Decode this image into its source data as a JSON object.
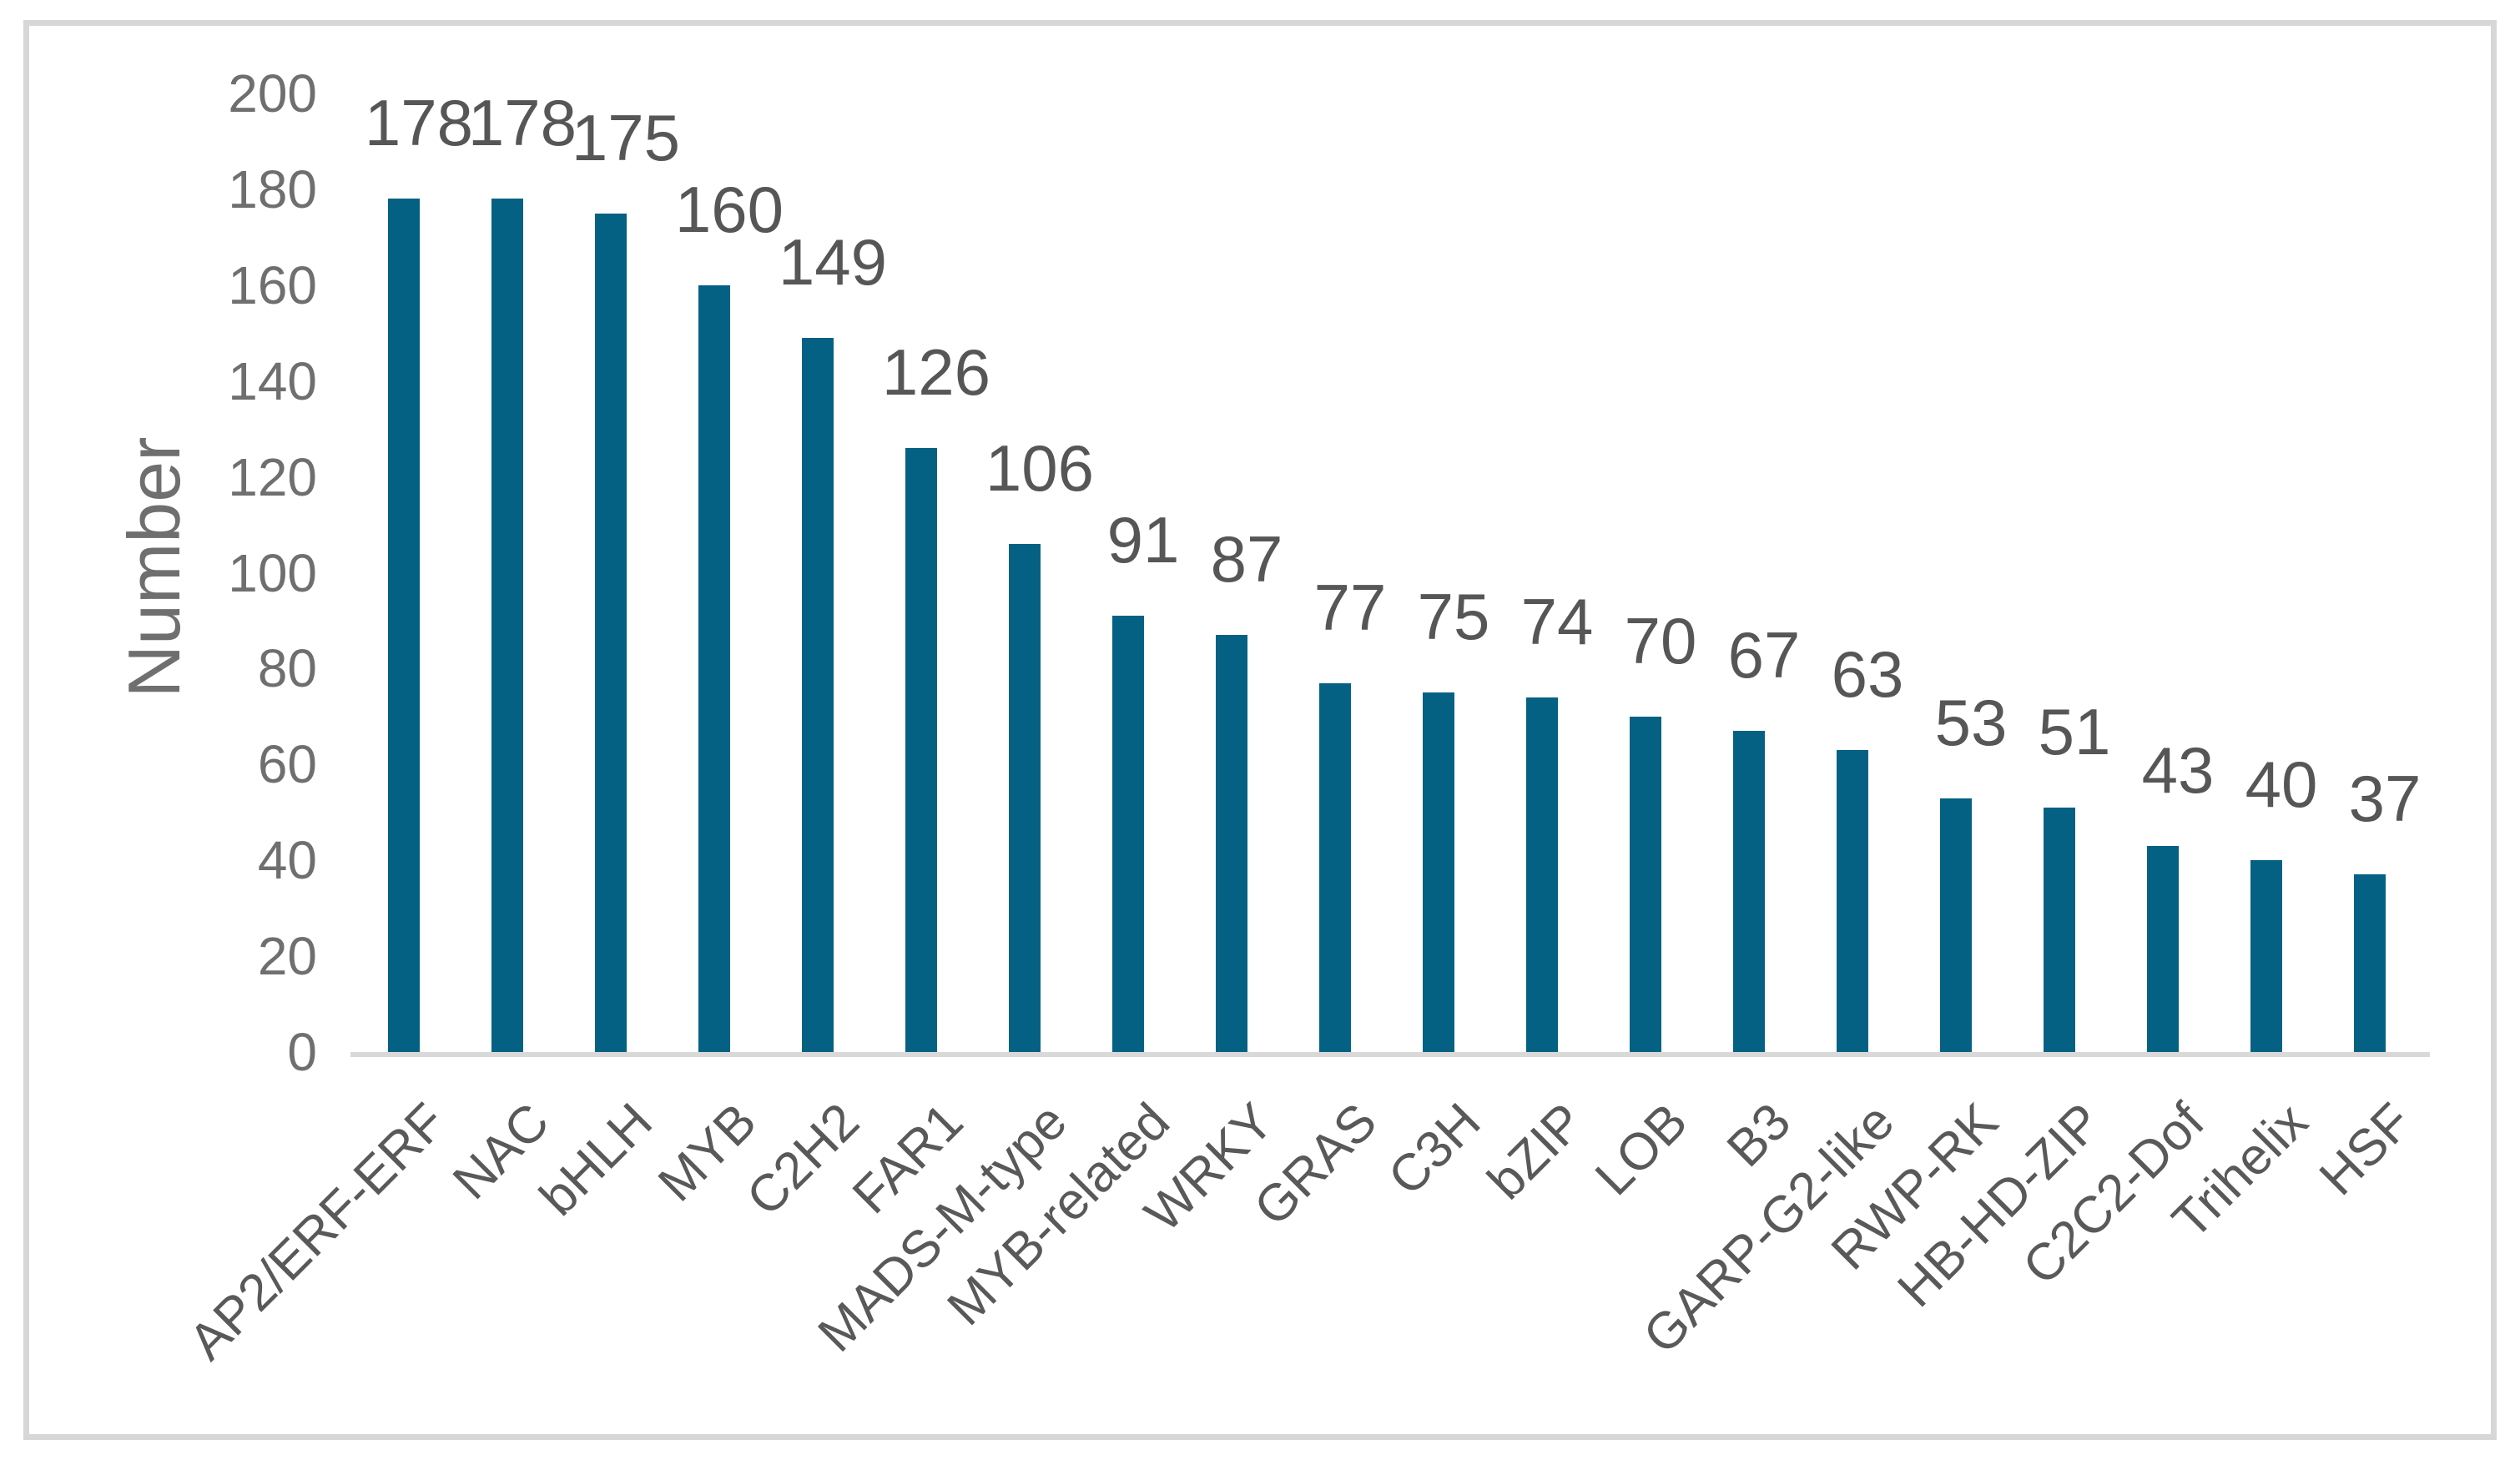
{
  "chart_data": {
    "type": "bar",
    "title": "",
    "xlabel": "",
    "ylabel": "Number",
    "categories": [
      "AP2/ERF-ERF",
      "NAC",
      "bHLH",
      "MYB",
      "C2H2",
      "FAR1",
      "MADS-M-type",
      "MYB-related",
      "WRKY",
      "GRAS",
      "C3H",
      "bZIP",
      "LOB",
      "B3",
      "GARP-G2-like",
      "RWP-RK",
      "HB-HD-ZIP",
      "C2C2-Dof",
      "Trihelix",
      "HSF"
    ],
    "values": [
      178,
      178,
      175,
      160,
      149,
      126,
      106,
      91,
      87,
      77,
      75,
      74,
      70,
      67,
      63,
      53,
      51,
      43,
      40,
      37
    ],
    "data_labels_shown": true,
    "ylim": [
      0,
      200
    ],
    "ytick_step": 20,
    "yticks": [
      0,
      20,
      40,
      60,
      80,
      100,
      120,
      140,
      160,
      180,
      200
    ],
    "grid": false,
    "legend": null,
    "category_label_rotation_deg": -45,
    "colors": {
      "bar": "#046183",
      "data_label": "#565656",
      "tick_label": "#6f6f6f",
      "category_label": "#595959",
      "axis_line": "#d9d9d9",
      "frame_border": "#d7d7d7",
      "background": "#ffffff"
    }
  }
}
